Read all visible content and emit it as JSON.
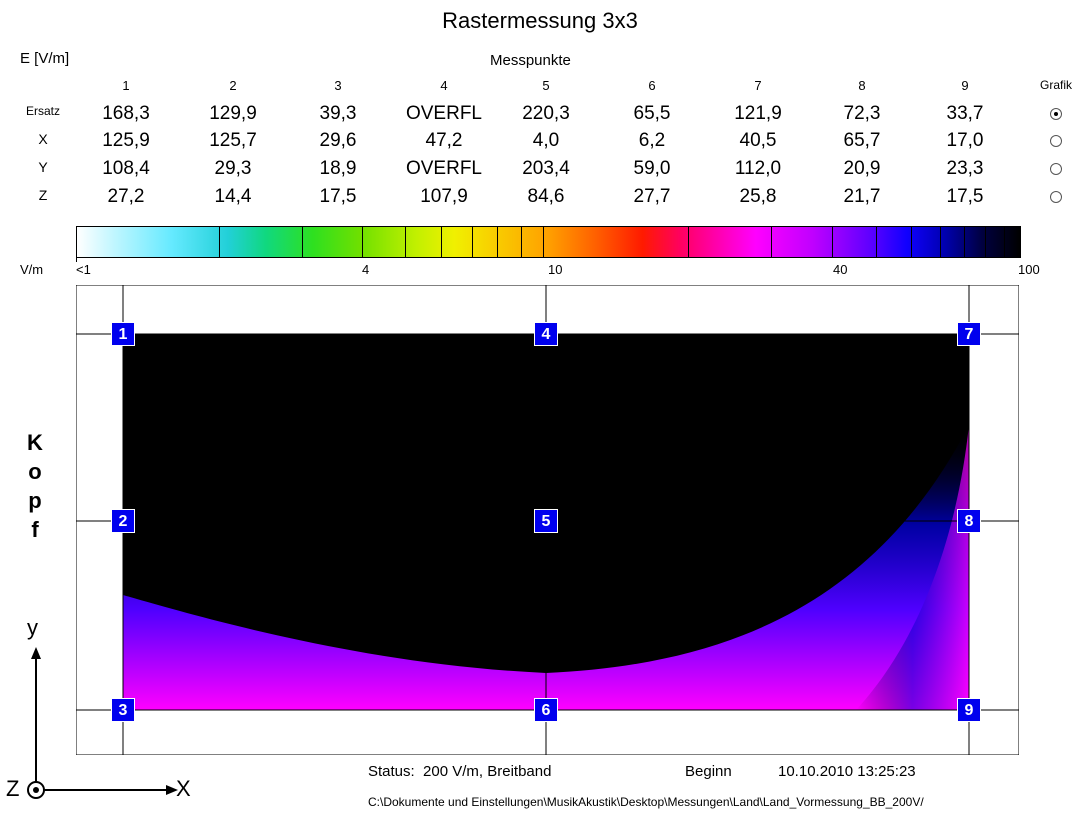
{
  "title": "Rastermessung 3x3",
  "unit_label": "E [V/m]",
  "messpunkte_label": "Messpunkte",
  "grafik_label": "Grafik",
  "columns": [
    "1",
    "2",
    "3",
    "4",
    "5",
    "6",
    "7",
    "8",
    "9"
  ],
  "rows": [
    {
      "label": "Ersatz",
      "values": [
        "168,3",
        "129,9",
        "39,3",
        "OVERFL",
        "220,3",
        "65,5",
        "121,9",
        "72,3",
        "33,7"
      ],
      "selected": true
    },
    {
      "label": "X",
      "values": [
        "125,9",
        "125,7",
        "29,6",
        "47,2",
        "4,0",
        "6,2",
        "40,5",
        "65,7",
        "17,0"
      ],
      "selected": false
    },
    {
      "label": "Y",
      "values": [
        "108,4",
        "29,3",
        "18,9",
        "OVERFL",
        "203,4",
        "59,0",
        "112,0",
        "20,9",
        "23,3"
      ],
      "selected": false
    },
    {
      "label": "Z",
      "values": [
        "27,2",
        "14,4",
        "17,5",
        "107,9",
        "84,6",
        "27,7",
        "25,8",
        "21,7",
        "17,5"
      ],
      "selected": false
    }
  ],
  "colorbar": {
    "unit": "V/m",
    "labels": [
      "<1",
      "4",
      "10",
      "40",
      "100"
    ]
  },
  "plot": {
    "point_labels": [
      "1",
      "2",
      "3",
      "4",
      "5",
      "6",
      "7",
      "8",
      "9"
    ],
    "kopf_letters": [
      "K",
      "o",
      "p",
      "f"
    ]
  },
  "axes": {
    "y": "y",
    "x": "X",
    "z": "Z"
  },
  "status": "Status:  200 V/m, Breitband",
  "beginn_label": "Beginn",
  "datetime": "10.10.2010 13:25:23",
  "file_path": "C:\\Dokumente und Einstellungen\\MusikAkustik\\Desktop\\Messungen\\Land\\Land_Vormessung_BB_200V/",
  "colors": {
    "point_marker": "#0000ee",
    "heat_high": "#000000",
    "heat_low": "#ff00ff"
  }
}
